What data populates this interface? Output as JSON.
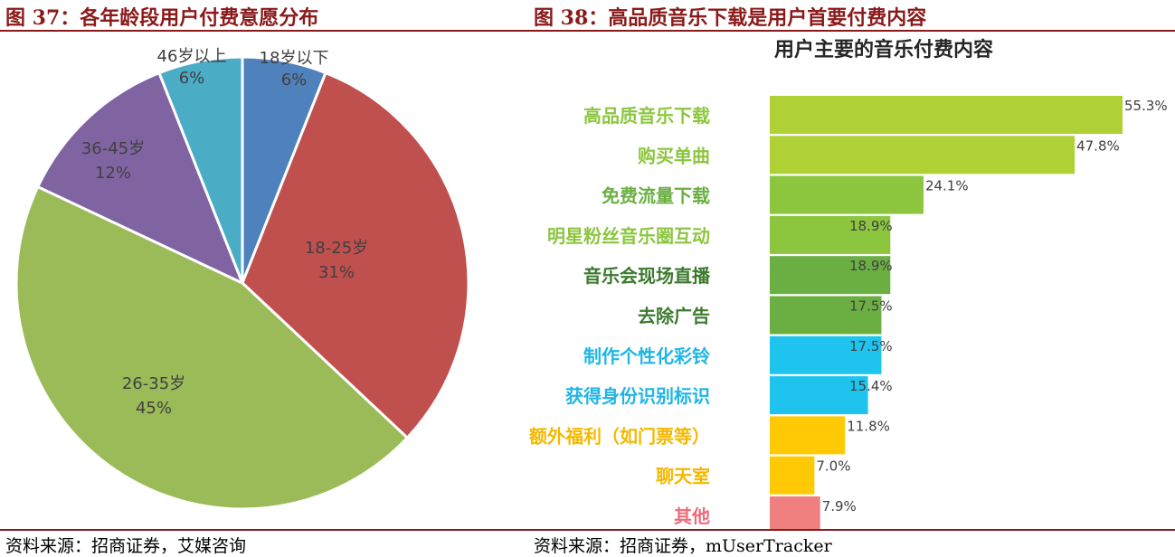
{
  "left": {
    "figure_title": "图 37：各年龄段用户付费意愿分布",
    "source": "资料来源：招商证券，艾媒咨询",
    "chart_data": {
      "type": "pie",
      "slices": [
        {
          "label": "18岁以下",
          "percent_label": "6%",
          "value": 6,
          "color": "#4F81BD"
        },
        {
          "label": "18-25岁",
          "percent_label": "31%",
          "value": 31,
          "color": "#C0504D"
        },
        {
          "label": "26-35岁",
          "percent_label": "45%",
          "value": 45,
          "color": "#9BBB59"
        },
        {
          "label": "36-45岁",
          "percent_label": "12%",
          "value": 12,
          "color": "#8064A2"
        },
        {
          "label": "46岁以上",
          "percent_label": "6%",
          "value": 6,
          "color": "#4BACC6"
        }
      ]
    }
  },
  "right": {
    "figure_title": "图 38：高品质音乐下载是用户首要付费内容",
    "source": "资料来源：招商证券，mUserTracker",
    "chart_data": {
      "type": "bar",
      "orientation": "horizontal",
      "title": "用户主要的音乐付费内容",
      "xlim": [
        0,
        55.3
      ],
      "categories": [
        "高品质音乐下载",
        "购买单曲",
        "免费流量下载",
        "明星粉丝音乐圈互动",
        "音乐会现场直播",
        "去除广告",
        "制作个性化彩铃",
        "获得身份识别标识",
        "额外福利（如门票等）",
        "聊天室",
        "其他"
      ],
      "values": [
        55.3,
        47.8,
        24.1,
        18.9,
        18.9,
        17.5,
        17.5,
        15.4,
        11.8,
        7.0,
        7.9
      ],
      "value_labels": [
        "55.3%",
        "47.8%",
        "24.1%",
        "18.9%",
        "18.9%",
        "17.5%",
        "17.5%",
        "15.4%",
        "11.8%",
        "7.0%",
        "7.9%"
      ],
      "bar_colors": [
        "#AFD135",
        "#AFD135",
        "#8CC63F",
        "#8CC63F",
        "#6BAF43",
        "#6BAF43",
        "#1FC4EE",
        "#1FC4EE",
        "#FFCA05",
        "#FFCA05",
        "#F08080"
      ],
      "label_colors": [
        "#8CC63F",
        "#8CC63F",
        "#6BAF43",
        "#8CC63F",
        "#3C7A2E",
        "#3C7A2E",
        "#1FB5E6",
        "#1FB5E6",
        "#F5B800",
        "#F5B800",
        "#F06B7A"
      ]
    }
  }
}
